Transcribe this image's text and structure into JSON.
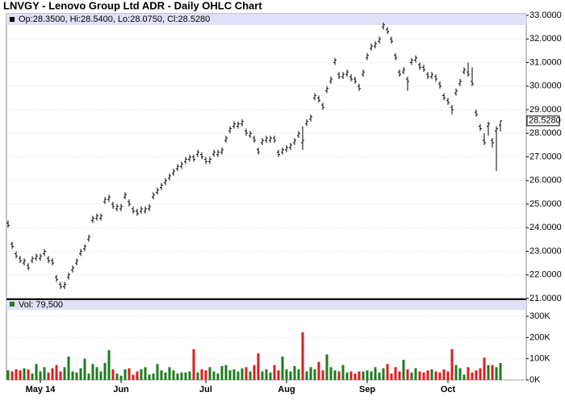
{
  "chart_data": [
    {
      "type": "ohlc",
      "title": "LNVGY - Lenovo Group Ltd ADR - Daily OHLC Chart",
      "legend_text": "Op:28.3500, Hi:28.5400, Lo:28.0750, Cl:28.5280",
      "color": "#000000",
      "band_color": "#e0e0f8",
      "open": [
        24.2,
        23.3,
        22.9,
        22.7,
        22.5,
        22.4,
        22.6,
        22.7,
        22.7,
        22.9,
        22.7,
        22.6,
        21.9,
        21.6,
        21.5,
        21.9,
        22.2,
        22.5,
        22.9,
        23.1,
        23.5,
        24.3,
        24.4,
        24.4,
        25.1,
        25.2,
        25.0,
        24.8,
        24.8,
        25.3,
        25.1,
        24.8,
        24.7,
        24.7,
        24.7,
        24.8,
        25.3,
        25.5,
        25.7,
        25.9,
        26.1,
        26.3,
        26.5,
        26.6,
        26.8,
        26.9,
        27.0,
        27.1,
        27.1,
        26.9,
        26.8,
        27.1,
        27.1,
        27.2,
        27.7,
        28.1,
        28.3,
        28.3,
        28.4,
        28.1,
        27.9,
        27.8,
        27.3,
        27.6,
        27.7,
        27.7,
        27.8,
        27.2,
        27.2,
        27.3,
        27.4,
        27.6,
        27.9,
        27.6,
        28.4,
        28.6,
        29.5,
        29.5,
        29.2,
        29.8,
        30.2,
        31.0,
        30.5,
        30.4,
        30.5,
        30.4,
        30.3,
        30.0,
        30.5,
        31.2,
        31.6,
        31.7,
        31.9,
        32.5,
        32.4,
        32.0,
        31.3,
        30.6,
        30.6,
        30.3,
        31.0,
        31.1,
        30.9,
        30.8,
        30.5,
        30.4,
        30.4,
        30.1,
        29.6,
        29.4,
        29.1,
        29.7,
        30.1,
        30.6,
        30.6,
        30.2,
        28.9,
        28.3,
        27.7,
        28.3,
        27.7,
        28.1,
        28.35
      ],
      "high": [
        24.3,
        23.4,
        23.0,
        22.8,
        22.7,
        22.5,
        22.8,
        22.9,
        22.9,
        23.1,
        22.8,
        22.7,
        22.0,
        21.7,
        21.7,
        22.1,
        22.4,
        22.7,
        23.1,
        23.3,
        23.7,
        24.5,
        24.6,
        24.6,
        25.3,
        25.4,
        25.1,
        25.0,
        25.0,
        25.5,
        25.2,
        24.9,
        24.8,
        24.9,
        24.9,
        25.0,
        25.5,
        25.7,
        25.9,
        26.1,
        26.3,
        26.5,
        26.7,
        26.8,
        27.0,
        27.1,
        27.1,
        27.3,
        27.2,
        27.0,
        27.0,
        27.3,
        27.3,
        27.4,
        27.9,
        28.3,
        28.5,
        28.5,
        28.6,
        28.2,
        28.1,
        27.9,
        27.4,
        27.8,
        27.9,
        27.9,
        27.9,
        27.3,
        27.4,
        27.5,
        27.6,
        27.8,
        28.1,
        28.3,
        28.6,
        28.8,
        29.7,
        29.6,
        29.3,
        30.0,
        30.4,
        31.2,
        30.6,
        30.6,
        30.7,
        30.5,
        30.4,
        30.1,
        30.7,
        31.4,
        31.8,
        31.9,
        32.1,
        32.7,
        32.5,
        32.1,
        31.4,
        30.7,
        30.8,
        30.4,
        31.2,
        31.3,
        31.0,
        30.9,
        30.6,
        30.6,
        30.5,
        30.2,
        29.7,
        29.5,
        29.2,
        29.9,
        30.3,
        30.8,
        31.0,
        30.8,
        29.0,
        28.4,
        28.0,
        28.5,
        27.8,
        28.3,
        28.54
      ],
      "low": [
        24.0,
        23.1,
        22.7,
        22.5,
        22.4,
        22.2,
        22.5,
        22.6,
        22.6,
        22.8,
        22.5,
        22.4,
        21.7,
        21.4,
        21.4,
        21.8,
        22.1,
        22.4,
        22.8,
        23.0,
        23.4,
        24.2,
        24.3,
        24.3,
        25.0,
        25.1,
        24.8,
        24.7,
        24.7,
        25.2,
        24.9,
        24.6,
        24.5,
        24.6,
        24.6,
        24.7,
        25.2,
        25.4,
        25.6,
        25.8,
        26.0,
        26.2,
        26.4,
        26.5,
        26.7,
        26.8,
        26.8,
        27.0,
        26.9,
        26.7,
        26.7,
        27.0,
        27.0,
        27.1,
        27.6,
        28.0,
        28.2,
        28.2,
        28.3,
        27.9,
        27.8,
        27.6,
        27.1,
        27.5,
        27.6,
        27.6,
        27.6,
        27.0,
        27.1,
        27.2,
        27.3,
        27.5,
        27.8,
        27.3,
        28.3,
        28.5,
        29.4,
        29.3,
        29.0,
        29.7,
        30.1,
        30.9,
        30.3,
        30.3,
        30.4,
        30.2,
        30.1,
        29.8,
        30.4,
        31.1,
        31.5,
        31.6,
        31.8,
        32.4,
        32.2,
        31.8,
        31.1,
        30.4,
        30.5,
        29.8,
        30.9,
        31.0,
        30.7,
        30.6,
        30.3,
        30.3,
        30.2,
        29.9,
        29.4,
        29.2,
        28.8,
        29.6,
        30.0,
        30.5,
        30.4,
        30.0,
        28.7,
        28.1,
        27.5,
        27.9,
        27.4,
        26.4,
        28.075
      ],
      "close": [
        24.1,
        23.2,
        22.8,
        22.6,
        22.6,
        22.3,
        22.7,
        22.8,
        22.8,
        23.0,
        22.6,
        22.5,
        21.8,
        21.5,
        21.6,
        22.0,
        22.3,
        22.6,
        23.0,
        23.2,
        23.6,
        24.4,
        24.5,
        24.5,
        25.2,
        25.3,
        24.9,
        24.9,
        24.9,
        25.4,
        25.0,
        24.7,
        24.6,
        24.8,
        24.8,
        24.9,
        25.4,
        25.6,
        25.8,
        26.0,
        26.2,
        26.4,
        26.6,
        26.7,
        26.9,
        27.0,
        26.9,
        27.2,
        27.0,
        26.8,
        26.9,
        27.2,
        27.2,
        27.3,
        27.8,
        28.2,
        28.4,
        28.4,
        28.5,
        28.0,
        28.0,
        27.7,
        27.2,
        27.7,
        27.8,
        27.8,
        27.7,
        27.1,
        27.3,
        27.4,
        27.5,
        27.7,
        28.0,
        27.7,
        28.5,
        28.7,
        29.6,
        29.4,
        29.1,
        29.9,
        30.3,
        31.1,
        30.4,
        30.5,
        30.6,
        30.3,
        30.2,
        29.9,
        30.6,
        31.3,
        31.7,
        31.8,
        32.0,
        32.6,
        32.3,
        31.9,
        31.2,
        30.5,
        30.7,
        30.2,
        31.1,
        31.2,
        30.8,
        30.7,
        30.4,
        30.5,
        30.3,
        30.0,
        29.5,
        29.3,
        29.0,
        29.8,
        30.2,
        30.7,
        30.5,
        30.1,
        28.8,
        28.2,
        27.6,
        28.4,
        27.6,
        28.2,
        28.528
      ],
      "last_price_label": "28.5280",
      "xlim": [
        -0.4,
        128.4
      ],
      "ylim": [
        21,
        33.07
      ],
      "yticks": [
        {
          "value": 21,
          "label": "21.0000"
        },
        {
          "value": 22,
          "label": "22.0000"
        },
        {
          "value": 23,
          "label": "23.0000"
        },
        {
          "value": 24,
          "label": "24.0000"
        },
        {
          "value": 25,
          "label": "25.0000"
        },
        {
          "value": 26,
          "label": "26.0000"
        },
        {
          "value": 27,
          "label": "27.0000"
        },
        {
          "value": 28,
          "label": "28.0000"
        },
        {
          "value": 29,
          "label": "29.0000"
        },
        {
          "value": 30,
          "label": "30.0000"
        },
        {
          "value": 31,
          "label": "31.0000"
        },
        {
          "value": 32,
          "label": "32.0000"
        },
        {
          "value": 33,
          "label": "33.0000"
        }
      ],
      "grid": true
    },
    {
      "type": "bar",
      "legend_text": "Vol: 79,500",
      "up_color": "#1e7b1e",
      "down_color": "#dd1c1c",
      "values": [
        45000,
        40000,
        50000,
        45000,
        55000,
        50000,
        30000,
        75000,
        40000,
        60000,
        35000,
        55000,
        70000,
        40000,
        60000,
        110000,
        40000,
        35000,
        55000,
        100000,
        30000,
        75000,
        60000,
        40000,
        80000,
        140000,
        50000,
        30000,
        20000,
        50000,
        55000,
        25000,
        40000,
        50000,
        60000,
        25000,
        30000,
        75000,
        45000,
        35000,
        60000,
        45000,
        30000,
        35000,
        35000,
        40000,
        145000,
        35000,
        50000,
        45000,
        60000,
        40000,
        30000,
        65000,
        70000,
        45000,
        50000,
        40000,
        55000,
        60000,
        40000,
        70000,
        125000,
        40000,
        50000,
        35000,
        70000,
        45000,
        110000,
        50000,
        40000,
        65000,
        50000,
        225000,
        40000,
        60000,
        50000,
        85000,
        45000,
        120000,
        60000,
        45000,
        40000,
        70000,
        35000,
        40000,
        30000,
        40000,
        40000,
        45000,
        40000,
        60000,
        35000,
        55000,
        75000,
        30000,
        60000,
        40000,
        95000,
        50000,
        35000,
        55000,
        40000,
        35000,
        45000,
        50000,
        40000,
        35000,
        50000,
        40000,
        145000,
        70000,
        55000,
        25000,
        60000,
        35000,
        45000,
        55000,
        105000,
        70000,
        70000,
        60000,
        79500
      ],
      "xlim": [
        -0.4,
        128.4
      ],
      "ylim": [
        0,
        380000
      ],
      "yticks": [
        {
          "value": 0,
          "label": "0K"
        },
        {
          "value": 100000,
          "label": "100K"
        },
        {
          "value": 200000,
          "label": "200K"
        },
        {
          "value": 300000,
          "label": "300K"
        }
      ],
      "xticks": [
        {
          "value": 8,
          "label": "May 14"
        },
        {
          "value": 28,
          "label": "Jun"
        },
        {
          "value": 49,
          "label": "Jul"
        },
        {
          "value": 69,
          "label": "Aug"
        },
        {
          "value": 89,
          "label": "Sep"
        },
        {
          "value": 109,
          "label": "Oct"
        }
      ],
      "grid": true
    }
  ]
}
